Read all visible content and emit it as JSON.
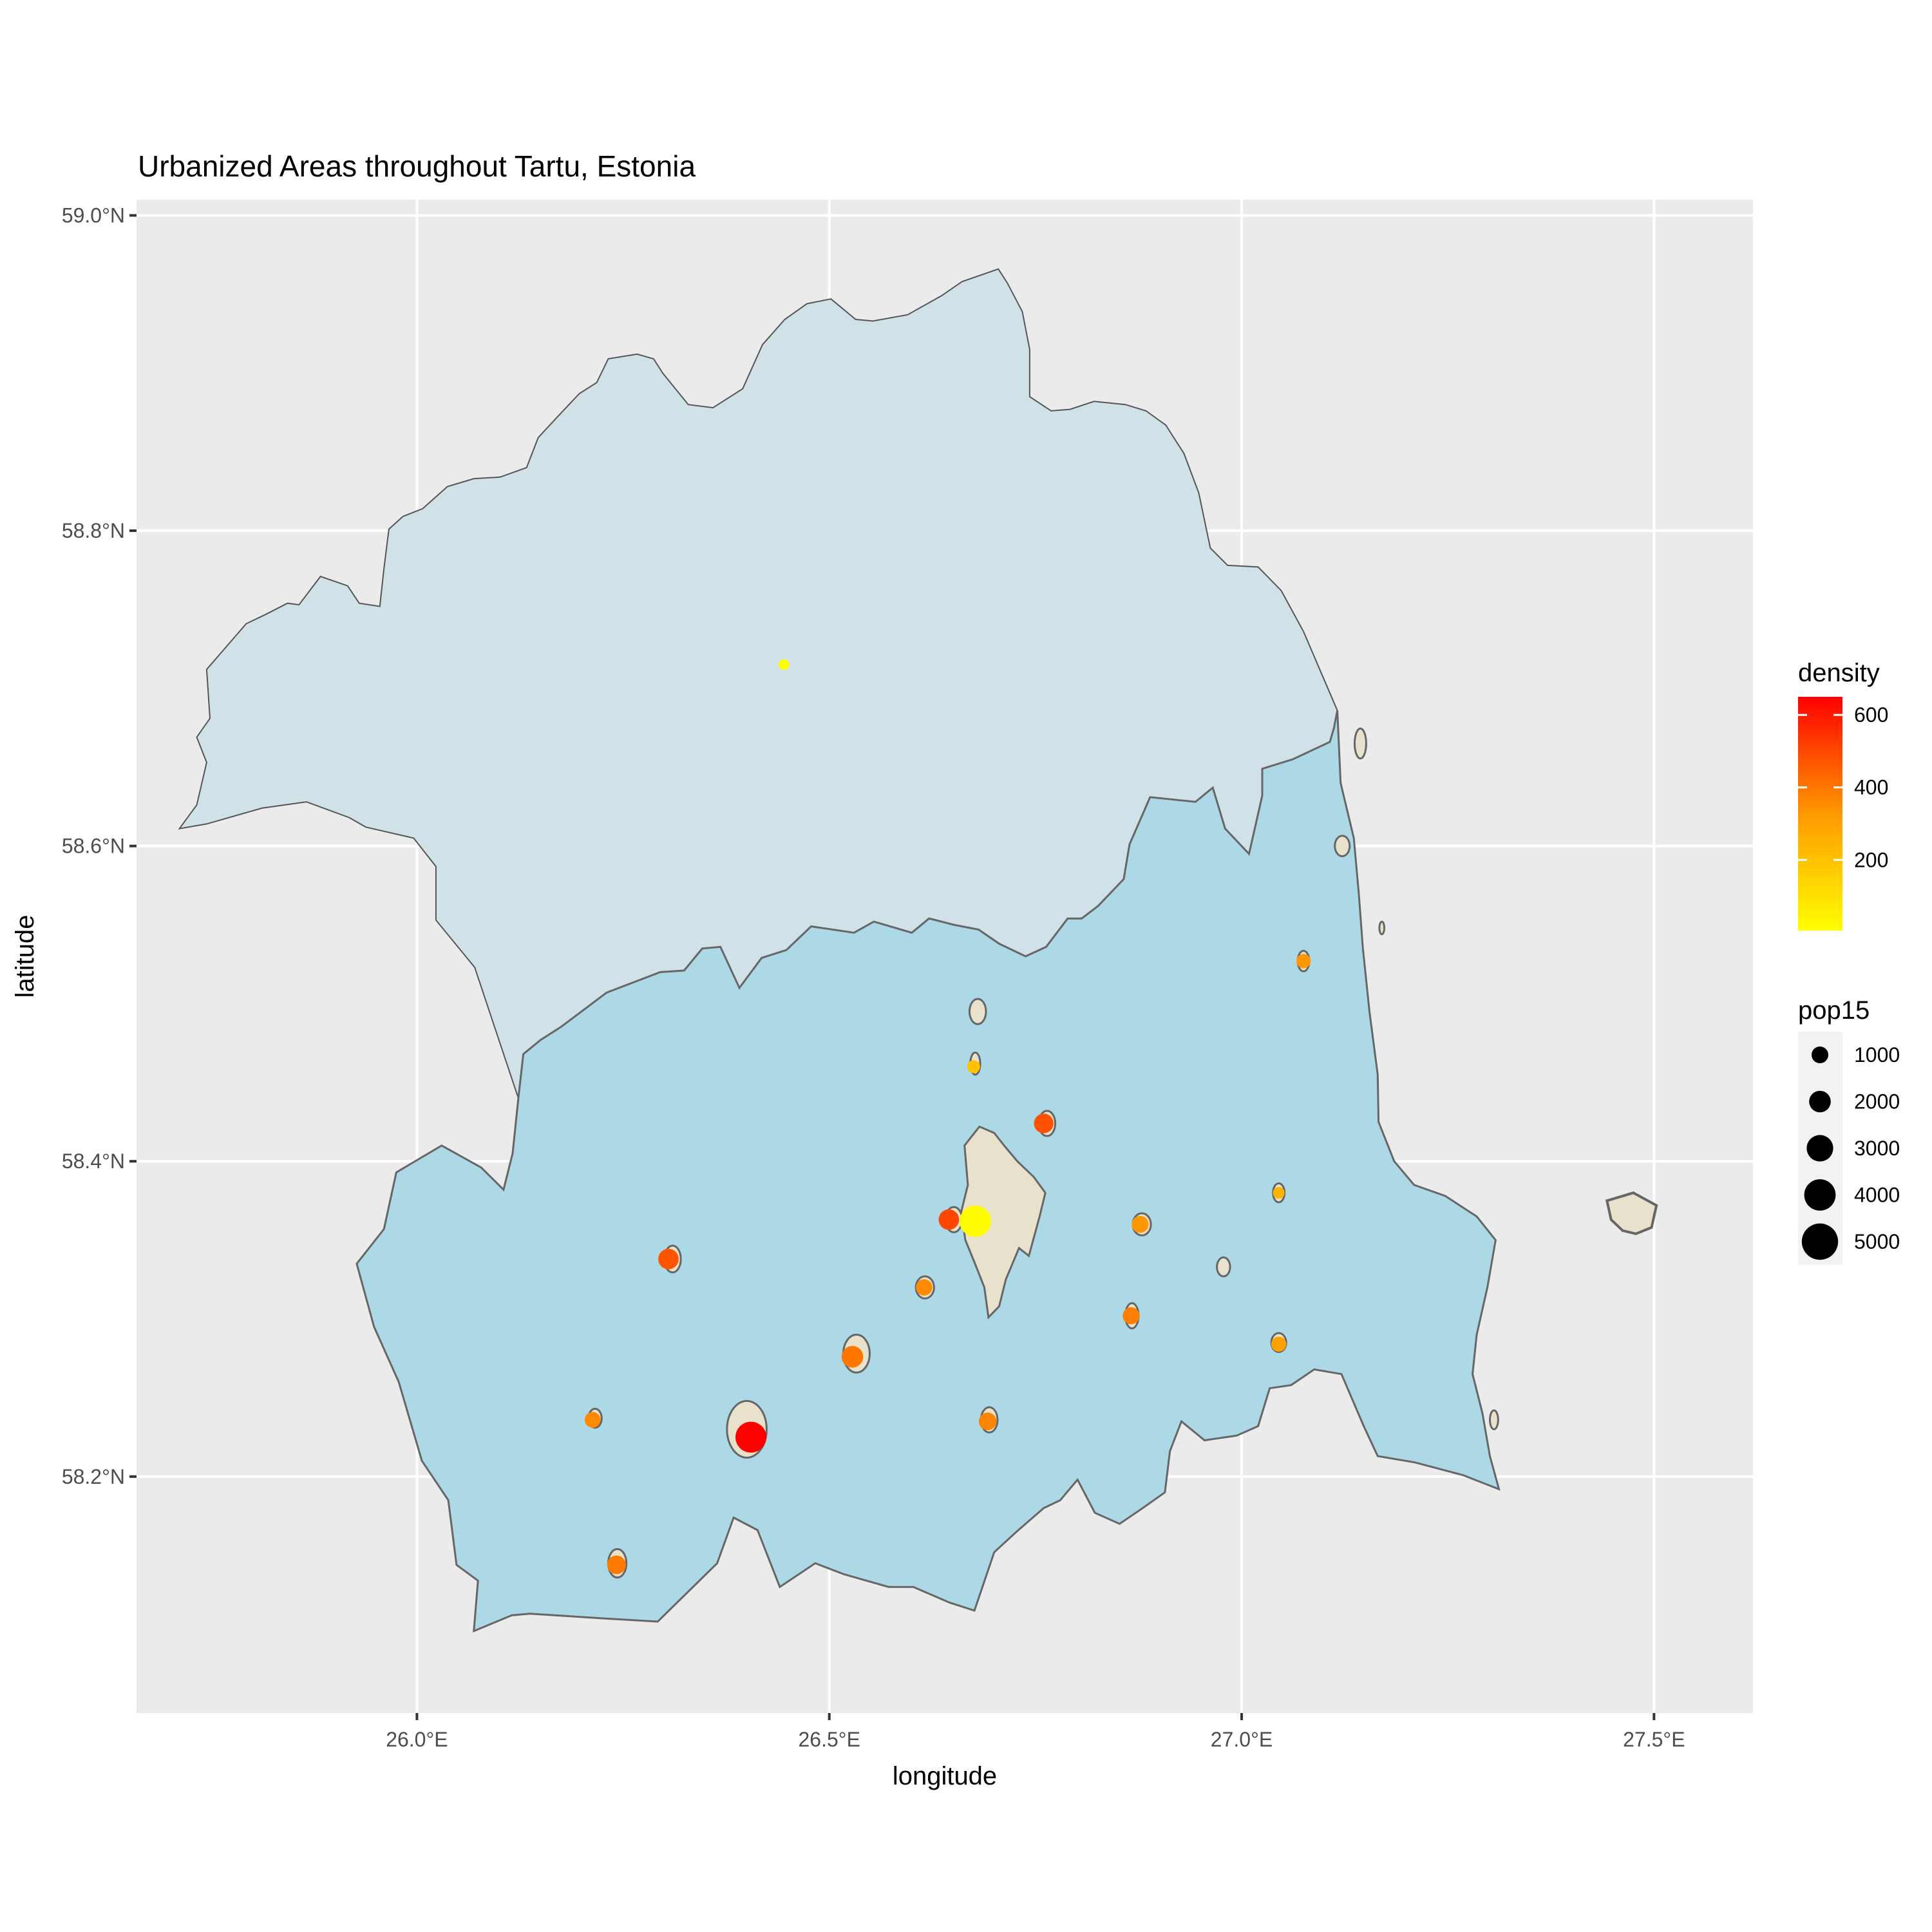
{
  "chart_data": {
    "type": "scatter",
    "title": "Urbanized Areas throughout Tartu, Estonia",
    "xlabel": "longitude",
    "ylabel": "latitude",
    "xlim": [
      25.66,
      27.62
    ],
    "ylim": [
      58.05,
      59.01
    ],
    "x_ticks": [
      {
        "value": 26.0,
        "label": "26.0°E"
      },
      {
        "value": 26.5,
        "label": "26.5°E"
      },
      {
        "value": 27.0,
        "label": "27.0°E"
      },
      {
        "value": 27.5,
        "label": "27.5°E"
      }
    ],
    "y_ticks": [
      {
        "value": 58.2,
        "label": "58.2°N"
      },
      {
        "value": 58.4,
        "label": "58.4°N"
      },
      {
        "value": 58.6,
        "label": "58.6°N"
      },
      {
        "value": 58.8,
        "label": "58.8°N"
      },
      {
        "value": 59.0,
        "label": "59.0°N"
      }
    ],
    "grid": true,
    "colors": {
      "panel": "#ebebeb",
      "grid": "#ffffff",
      "north_region": "#d0e2e8",
      "tartu_county": "#add8e6",
      "urban_area": "#e8e2cc",
      "outline": "#666666",
      "density_low": "#ffff00",
      "density_mid": "#ff9900",
      "density_high": "#ff0000"
    },
    "legend_density": {
      "title": "density",
      "ticks": [
        {
          "value": 200,
          "label": "200"
        },
        {
          "value": 400,
          "label": "400"
        },
        {
          "value": 600,
          "label": "600"
        }
      ],
      "range": [
        5,
        650
      ]
    },
    "legend_pop15": {
      "title": "pop15",
      "entries": [
        {
          "value": 1000,
          "label": "1000"
        },
        {
          "value": 2000,
          "label": "2000"
        },
        {
          "value": 3000,
          "label": "3000"
        },
        {
          "value": 4000,
          "label": "4000"
        },
        {
          "value": 5000,
          "label": "5000"
        }
      ]
    },
    "north_region_outline": [
      [
        25.712,
        58.611
      ],
      [
        25.733,
        58.626
      ],
      [
        25.745,
        58.653
      ],
      [
        25.733,
        58.669
      ],
      [
        25.749,
        58.681
      ],
      [
        25.745,
        58.712
      ],
      [
        25.793,
        58.741
      ],
      [
        25.817,
        58.747
      ],
      [
        25.843,
        58.754
      ],
      [
        25.857,
        58.753
      ],
      [
        25.883,
        58.771
      ],
      [
        25.916,
        58.765
      ],
      [
        25.93,
        58.754
      ],
      [
        25.955,
        58.752
      ],
      [
        25.96,
        58.776
      ],
      [
        25.966,
        58.801
      ],
      [
        25.983,
        58.809
      ],
      [
        26.007,
        58.814
      ],
      [
        26.037,
        58.828
      ],
      [
        26.069,
        58.833
      ],
      [
        26.101,
        58.834
      ],
      [
        26.133,
        58.84
      ],
      [
        26.147,
        58.859
      ],
      [
        26.17,
        58.872
      ],
      [
        26.197,
        58.887
      ],
      [
        26.218,
        58.894
      ],
      [
        26.232,
        58.909
      ],
      [
        26.267,
        58.912
      ],
      [
        26.287,
        58.909
      ],
      [
        26.298,
        58.9
      ],
      [
        26.329,
        58.88
      ],
      [
        26.359,
        58.878
      ],
      [
        26.395,
        58.89
      ],
      [
        26.419,
        58.918
      ],
      [
        26.446,
        58.934
      ],
      [
        26.473,
        58.944
      ],
      [
        26.502,
        58.947
      ],
      [
        26.532,
        58.934
      ],
      [
        26.553,
        58.933
      ],
      [
        26.595,
        58.937
      ],
      [
        26.636,
        58.949
      ],
      [
        26.661,
        58.958
      ],
      [
        26.705,
        58.966
      ],
      [
        26.716,
        58.957
      ],
      [
        26.734,
        58.939
      ],
      [
        26.743,
        58.915
      ],
      [
        26.743,
        58.885
      ],
      [
        26.769,
        58.876
      ],
      [
        26.792,
        58.877
      ],
      [
        26.821,
        58.882
      ],
      [
        26.859,
        58.88
      ],
      [
        26.884,
        58.876
      ],
      [
        26.908,
        58.867
      ],
      [
        26.93,
        58.849
      ],
      [
        26.948,
        58.824
      ],
      [
        26.962,
        58.789
      ],
      [
        26.983,
        58.778
      ],
      [
        27.02,
        58.777
      ],
      [
        27.048,
        58.762
      ],
      [
        27.075,
        58.736
      ],
      [
        27.098,
        58.708
      ],
      [
        27.116,
        58.686
      ],
      [
        27.112,
        58.675
      ],
      [
        27.107,
        58.666
      ],
      [
        27.062,
        58.655
      ],
      [
        27.025,
        58.649
      ],
      [
        27.025,
        58.632
      ],
      [
        27.009,
        58.595
      ],
      [
        26.98,
        58.611
      ],
      [
        26.965,
        58.637
      ],
      [
        26.944,
        58.628
      ],
      [
        26.889,
        58.631
      ],
      [
        26.864,
        58.601
      ],
      [
        26.857,
        58.579
      ],
      [
        26.826,
        58.562
      ],
      [
        26.806,
        58.554
      ],
      [
        26.789,
        58.554
      ],
      [
        26.763,
        58.536
      ],
      [
        26.738,
        58.53
      ],
      [
        26.706,
        58.538
      ],
      [
        26.681,
        58.547
      ],
      [
        26.651,
        58.55
      ],
      [
        26.621,
        58.554
      ],
      [
        26.6,
        58.545
      ],
      [
        26.554,
        58.552
      ],
      [
        26.53,
        58.545
      ],
      [
        26.478,
        58.549
      ],
      [
        26.448,
        58.534
      ],
      [
        26.418,
        58.529
      ],
      [
        26.391,
        58.51
      ],
      [
        26.368,
        58.536
      ],
      [
        26.346,
        58.535
      ],
      [
        26.324,
        58.521
      ],
      [
        26.295,
        58.52
      ],
      [
        26.23,
        58.507
      ],
      [
        26.174,
        58.485
      ],
      [
        26.15,
        58.477
      ],
      [
        26.129,
        58.468
      ],
      [
        26.123,
        58.44
      ],
      [
        26.07,
        58.523
      ],
      [
        26.023,
        58.553
      ],
      [
        26.023,
        58.587
      ],
      [
        25.996,
        58.605
      ],
      [
        25.938,
        58.612
      ],
      [
        25.918,
        58.618
      ],
      [
        25.866,
        58.628
      ],
      [
        25.812,
        58.624
      ],
      [
        25.745,
        58.614
      ],
      [
        25.712,
        58.611
      ]
    ],
    "tartu_county_outline": [
      [
        26.123,
        58.44
      ],
      [
        26.129,
        58.468
      ],
      [
        26.15,
        58.477
      ],
      [
        26.174,
        58.485
      ],
      [
        26.23,
        58.507
      ],
      [
        26.295,
        58.52
      ],
      [
        26.324,
        58.521
      ],
      [
        26.346,
        58.535
      ],
      [
        26.368,
        58.536
      ],
      [
        26.391,
        58.51
      ],
      [
        26.418,
        58.529
      ],
      [
        26.448,
        58.534
      ],
      [
        26.478,
        58.549
      ],
      [
        26.53,
        58.545
      ],
      [
        26.554,
        58.552
      ],
      [
        26.6,
        58.545
      ],
      [
        26.621,
        58.554
      ],
      [
        26.651,
        58.55
      ],
      [
        26.681,
        58.547
      ],
      [
        26.706,
        58.538
      ],
      [
        26.738,
        58.53
      ],
      [
        26.763,
        58.536
      ],
      [
        26.789,
        58.554
      ],
      [
        26.806,
        58.554
      ],
      [
        26.826,
        58.562
      ],
      [
        26.857,
        58.579
      ],
      [
        26.864,
        58.601
      ],
      [
        26.889,
        58.631
      ],
      [
        26.944,
        58.628
      ],
      [
        26.965,
        58.637
      ],
      [
        26.98,
        58.611
      ],
      [
        27.009,
        58.595
      ],
      [
        27.025,
        58.632
      ],
      [
        27.025,
        58.649
      ],
      [
        27.062,
        58.655
      ],
      [
        27.107,
        58.666
      ],
      [
        27.112,
        58.675
      ],
      [
        27.116,
        58.686
      ],
      [
        27.12,
        58.64
      ],
      [
        27.136,
        58.605
      ],
      [
        27.142,
        58.57
      ],
      [
        27.147,
        58.535
      ],
      [
        27.155,
        58.495
      ],
      [
        27.165,
        58.455
      ],
      [
        27.166,
        58.425
      ],
      [
        27.185,
        58.4
      ],
      [
        27.209,
        58.385
      ],
      [
        27.247,
        58.378
      ],
      [
        27.285,
        58.365
      ],
      [
        27.308,
        58.35
      ],
      [
        27.298,
        58.32
      ],
      [
        27.285,
        58.29
      ],
      [
        27.28,
        58.265
      ],
      [
        27.292,
        58.24
      ],
      [
        27.301,
        58.213
      ],
      [
        27.312,
        58.192
      ],
      [
        27.268,
        58.201
      ],
      [
        27.21,
        58.209
      ],
      [
        27.165,
        58.213
      ],
      [
        27.148,
        58.232
      ],
      [
        27.121,
        58.265
      ],
      [
        27.088,
        58.268
      ],
      [
        27.06,
        58.258
      ],
      [
        27.034,
        58.256
      ],
      [
        27.02,
        58.232
      ],
      [
        26.994,
        58.226
      ],
      [
        26.955,
        58.223
      ],
      [
        26.927,
        58.235
      ],
      [
        26.913,
        58.216
      ],
      [
        26.907,
        58.19
      ],
      [
        26.88,
        58.18
      ],
      [
        26.852,
        58.17
      ],
      [
        26.822,
        58.177
      ],
      [
        26.801,
        58.198
      ],
      [
        26.78,
        58.185
      ],
      [
        26.76,
        58.18
      ],
      [
        26.727,
        58.165
      ],
      [
        26.7,
        58.152
      ],
      [
        26.676,
        58.115
      ],
      [
        26.646,
        58.12
      ],
      [
        26.602,
        58.13
      ],
      [
        26.572,
        58.13
      ],
      [
        26.518,
        58.138
      ],
      [
        26.483,
        58.145
      ],
      [
        26.44,
        58.13
      ],
      [
        26.413,
        58.166
      ],
      [
        26.384,
        58.174
      ],
      [
        26.364,
        58.145
      ],
      [
        26.292,
        58.108
      ],
      [
        26.227,
        58.11
      ],
      [
        26.137,
        58.113
      ],
      [
        26.115,
        58.112
      ],
      [
        26.069,
        58.102
      ],
      [
        26.074,
        58.134
      ],
      [
        26.048,
        58.144
      ],
      [
        26.038,
        58.185
      ],
      [
        26.006,
        58.21
      ],
      [
        25.978,
        58.26
      ],
      [
        25.948,
        58.295
      ],
      [
        25.927,
        58.335
      ],
      [
        25.96,
        58.357
      ],
      [
        25.975,
        58.393
      ],
      [
        26.03,
        58.41
      ],
      [
        26.078,
        58.396
      ],
      [
        26.105,
        58.382
      ],
      [
        26.116,
        58.405
      ],
      [
        26.123,
        58.44
      ]
    ],
    "tartu_city_outline": [
      [
        26.664,
        58.41
      ],
      [
        26.682,
        58.422
      ],
      [
        26.7,
        58.418
      ],
      [
        26.712,
        58.41
      ],
      [
        26.728,
        58.4
      ],
      [
        26.748,
        58.39
      ],
      [
        26.762,
        58.38
      ],
      [
        26.755,
        58.365
      ],
      [
        26.742,
        58.34
      ],
      [
        26.73,
        58.345
      ],
      [
        26.714,
        58.325
      ],
      [
        26.706,
        58.308
      ],
      [
        26.693,
        58.301
      ],
      [
        26.688,
        58.32
      ],
      [
        26.676,
        58.336
      ],
      [
        26.665,
        58.35
      ],
      [
        26.66,
        58.368
      ],
      [
        26.668,
        58.385
      ],
      [
        26.664,
        58.41
      ]
    ],
    "peipsi_island_outline": [
      [
        27.443,
        58.375
      ],
      [
        27.475,
        58.38
      ],
      [
        27.503,
        58.372
      ],
      [
        27.497,
        58.358
      ],
      [
        27.478,
        58.354
      ],
      [
        27.462,
        58.356
      ],
      [
        27.448,
        58.363
      ],
      [
        27.443,
        58.375
      ]
    ],
    "urban_patches": [
      {
        "x": 26.31,
        "y": 58.338,
        "rx": 0.01,
        "ry": 0.0085,
        "dot": false
      },
      {
        "x": 26.216,
        "y": 58.237,
        "rx": 0.008,
        "ry": 0.006,
        "dot": false
      },
      {
        "x": 26.4,
        "y": 58.23,
        "rx": 0.024,
        "ry": 0.018,
        "dot": false
      },
      {
        "x": 26.243,
        "y": 58.145,
        "rx": 0.011,
        "ry": 0.009,
        "dot": false
      },
      {
        "x": 26.533,
        "y": 58.278,
        "rx": 0.016,
        "ry": 0.012,
        "dot": false
      },
      {
        "x": 26.616,
        "y": 58.32,
        "rx": 0.011,
        "ry": 0.007,
        "dot": false
      },
      {
        "x": 26.651,
        "y": 58.363,
        "rx": 0.01,
        "ry": 0.008,
        "dot": false
      },
      {
        "x": 26.694,
        "y": 58.236,
        "rx": 0.01,
        "ry": 0.008,
        "dot": false
      },
      {
        "x": 26.764,
        "y": 58.424,
        "rx": 0.01,
        "ry": 0.008,
        "dot": false
      },
      {
        "x": 26.867,
        "y": 58.302,
        "rx": 0.008,
        "ry": 0.008,
        "dot": false
      },
      {
        "x": 26.879,
        "y": 58.36,
        "rx": 0.011,
        "ry": 0.007,
        "dot": false
      },
      {
        "x": 26.978,
        "y": 58.333,
        "rx": 0.008,
        "ry": 0.006,
        "dot": false
      },
      {
        "x": 27.045,
        "y": 58.38,
        "rx": 0.007,
        "ry": 0.006,
        "dot": false
      },
      {
        "x": 27.045,
        "y": 58.285,
        "rx": 0.009,
        "ry": 0.006,
        "dot": false
      },
      {
        "x": 27.075,
        "y": 58.527,
        "rx": 0.007,
        "ry": 0.0065,
        "dot": false
      },
      {
        "x": 26.677,
        "y": 58.462,
        "rx": 0.006,
        "ry": 0.007,
        "dot": false
      },
      {
        "x": 26.68,
        "y": 58.495,
        "rx": 0.01,
        "ry": 0.008,
        "dot": false
      },
      {
        "x": 27.122,
        "y": 58.6,
        "rx": 0.009,
        "ry": 0.0065,
        "dot": false
      },
      {
        "x": 27.144,
        "y": 58.665,
        "rx": 0.007,
        "ry": 0.0095,
        "dot": false
      },
      {
        "x": 27.17,
        "y": 58.548,
        "rx": 0.003,
        "ry": 0.004,
        "dot": false
      },
      {
        "x": 27.306,
        "y": 58.236,
        "rx": 0.005,
        "ry": 0.006,
        "dot": false
      }
    ],
    "points": [
      {
        "lon": 26.445,
        "lat": 58.715,
        "pop15": 80,
        "density": 5
      },
      {
        "lon": 26.677,
        "lat": 58.362,
        "pop15": 5200,
        "density": 15
      },
      {
        "lon": 26.405,
        "lat": 58.225,
        "pop15": 5000,
        "density": 650
      },
      {
        "lon": 26.645,
        "lat": 58.363,
        "pop15": 1500,
        "density": 500
      },
      {
        "lon": 26.76,
        "lat": 58.424,
        "pop15": 1300,
        "density": 480
      },
      {
        "lon": 26.305,
        "lat": 58.338,
        "pop15": 1500,
        "density": 470
      },
      {
        "lon": 26.528,
        "lat": 58.276,
        "pop15": 1800,
        "density": 400
      },
      {
        "lon": 26.242,
        "lat": 58.144,
        "pop15": 1100,
        "density": 390
      },
      {
        "lon": 26.213,
        "lat": 58.236,
        "pop15": 600,
        "density": 360
      },
      {
        "lon": 26.615,
        "lat": 58.32,
        "pop15": 700,
        "density": 360
      },
      {
        "lon": 26.692,
        "lat": 58.235,
        "pop15": 900,
        "density": 370
      },
      {
        "lon": 26.866,
        "lat": 58.302,
        "pop15": 800,
        "density": 380
      },
      {
        "lon": 26.877,
        "lat": 58.36,
        "pop15": 800,
        "density": 330
      },
      {
        "lon": 27.045,
        "lat": 58.284,
        "pop15": 500,
        "density": 300
      },
      {
        "lon": 27.075,
        "lat": 58.527,
        "pop15": 400,
        "density": 330
      },
      {
        "lon": 27.045,
        "lat": 58.38,
        "pop15": 150,
        "density": 250
      },
      {
        "lon": 26.675,
        "lat": 58.46,
        "pop15": 250,
        "density": 200
      }
    ]
  }
}
